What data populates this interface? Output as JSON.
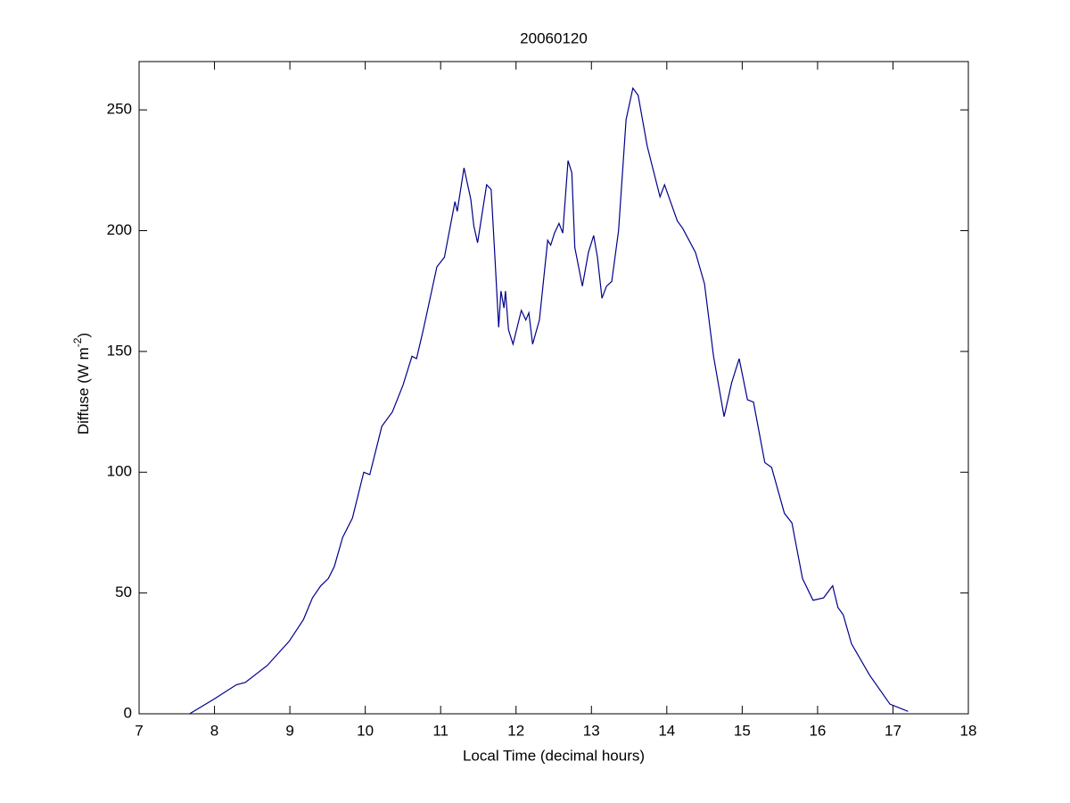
{
  "chart_data": {
    "type": "line",
    "title": "20060120",
    "x_label": "Local Time (decimal hours)",
    "y_label": [
      "Diffuse (W m",
      "-2",
      ")"
    ],
    "xlim": [
      7,
      18
    ],
    "xticks": [
      7,
      8,
      9,
      10,
      11,
      12,
      13,
      14,
      15,
      16,
      17,
      18
    ],
    "ylim": [
      0,
      270
    ],
    "yticks": [
      0,
      50,
      100,
      150,
      200,
      250
    ],
    "grid": false,
    "series": [
      {
        "color": "#00008b",
        "x": [
          7.67,
          7.99,
          8.29,
          8.41,
          8.7,
          8.99,
          9.18,
          9.3,
          9.41,
          9.51,
          9.59,
          9.7,
          9.83,
          9.98,
          10.06,
          10.22,
          10.36,
          10.5,
          10.62,
          10.68,
          10.77,
          10.95,
          11.05,
          11.19,
          11.22,
          11.31,
          11.4,
          11.44,
          11.49,
          11.53,
          11.61,
          11.67,
          11.72,
          11.77,
          11.8,
          11.84,
          11.86,
          11.9,
          11.96,
          12.07,
          12.13,
          12.17,
          12.22,
          12.31,
          12.42,
          12.46,
          12.51,
          12.57,
          12.62,
          12.69,
          12.74,
          12.78,
          12.88,
          12.96,
          13.03,
          13.08,
          13.14,
          13.2,
          13.27,
          13.36,
          13.46,
          13.55,
          13.62,
          13.74,
          13.91,
          13.97,
          14.14,
          14.21,
          14.38,
          14.5,
          14.62,
          14.76,
          14.86,
          14.96,
          15.07,
          15.15,
          15.3,
          15.39,
          15.56,
          15.66,
          15.8,
          15.94,
          16.08,
          16.2,
          16.27,
          16.34,
          16.45,
          16.69,
          16.96,
          17.2
        ],
        "values": [
          0,
          6,
          12,
          13,
          20,
          30,
          39,
          48,
          53,
          56,
          61,
          73,
          81,
          100,
          99,
          119,
          125,
          136,
          148,
          147,
          159,
          185,
          189,
          212,
          208,
          226,
          213,
          202,
          195,
          203,
          219,
          217,
          189,
          160,
          175,
          168,
          175,
          159,
          153,
          167,
          163,
          166,
          153,
          163,
          196,
          194,
          199,
          203,
          199,
          229,
          224,
          193,
          177,
          191,
          198,
          189,
          172,
          177,
          179,
          200,
          246,
          259,
          256,
          235,
          214,
          219,
          204,
          201,
          191,
          178,
          148,
          123,
          137,
          147,
          130,
          129,
          104,
          102,
          83,
          79,
          56,
          47,
          48,
          53,
          44,
          41,
          29,
          16,
          4,
          1
        ]
      }
    ]
  }
}
